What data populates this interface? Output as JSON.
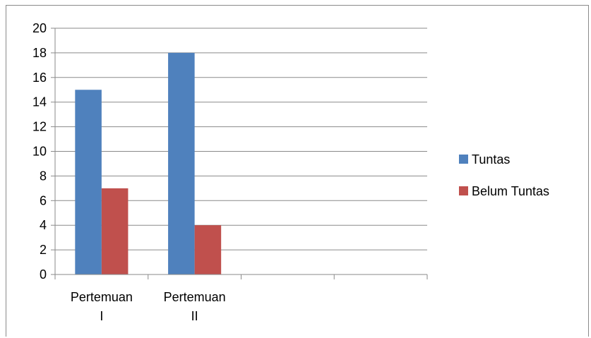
{
  "chart_data": {
    "type": "bar",
    "categories": [
      [
        "Pertemuan",
        "I"
      ],
      [
        "Pertemuan",
        "II"
      ],
      [
        "",
        ""
      ],
      [
        "",
        ""
      ]
    ],
    "series": [
      {
        "name": "Tuntas",
        "values": [
          15,
          18,
          null,
          null
        ],
        "color": "#4F81BD"
      },
      {
        "name": "Belum Tuntas",
        "values": [
          7,
          4,
          null,
          null
        ],
        "color": "#C0504D"
      }
    ],
    "ylim": [
      0,
      20
    ],
    "yticks": [
      0,
      2,
      4,
      6,
      8,
      10,
      12,
      14,
      16,
      18,
      20
    ],
    "grid": true,
    "legend_position": "right",
    "title": "",
    "xlabel": "",
    "ylabel": ""
  }
}
